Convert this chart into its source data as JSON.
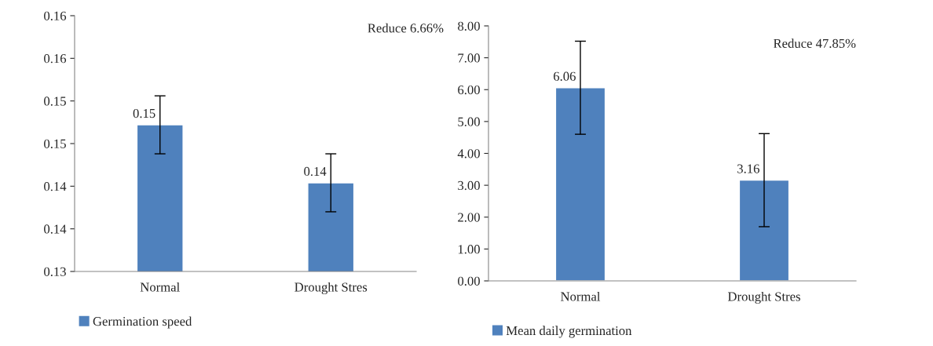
{
  "chart_data": [
    {
      "type": "bar",
      "categories": [
        "Normal",
        "Drought Stres"
      ],
      "ylim": [
        0.13,
        0.16
      ],
      "yticks": [
        0.13,
        {
          "value": 0.135,
          "label": "0.14"
        },
        0.14,
        {
          "value": 0.145,
          "label": "0.15"
        },
        0.15,
        {
          "value": 0.155,
          "label": "0.16"
        },
        0.16
      ],
      "series": [
        {
          "name": "Germination speed",
          "color": "#4f81bd",
          "values": [
            0.1472,
            0.1404
          ],
          "errors": [
            0.0034,
            0.0034
          ],
          "value_labels": [
            "0.15",
            "0.14"
          ]
        }
      ],
      "annotations": [
        "Reduce 6.66%"
      ],
      "legend": "bottom",
      "grid": false
    },
    {
      "type": "bar",
      "categories": [
        "Normal",
        "Drought Stres"
      ],
      "ylim": [
        0,
        8
      ],
      "yticks": [
        {
          "value": 0,
          "label": "0.00"
        },
        {
          "value": 1,
          "label": "1.00"
        },
        {
          "value": 2,
          "label": "2.00"
        },
        {
          "value": 3,
          "label": "3.00"
        },
        {
          "value": 4,
          "label": "4.00"
        },
        {
          "value": 5,
          "label": "5.00"
        },
        {
          "value": 6,
          "label": "6.00"
        },
        {
          "value": 7,
          "label": "7.00"
        },
        {
          "value": 8,
          "label": "8.00"
        }
      ],
      "series": [
        {
          "name": "Mean daily germination",
          "color": "#4f81bd",
          "values": [
            6.06,
            3.16
          ],
          "errors": [
            1.46,
            1.46
          ],
          "value_labels": [
            "6.06",
            "3.16"
          ]
        }
      ],
      "annotations": [
        "Reduce 47.85%"
      ],
      "legend": "bottom",
      "grid": false
    }
  ]
}
